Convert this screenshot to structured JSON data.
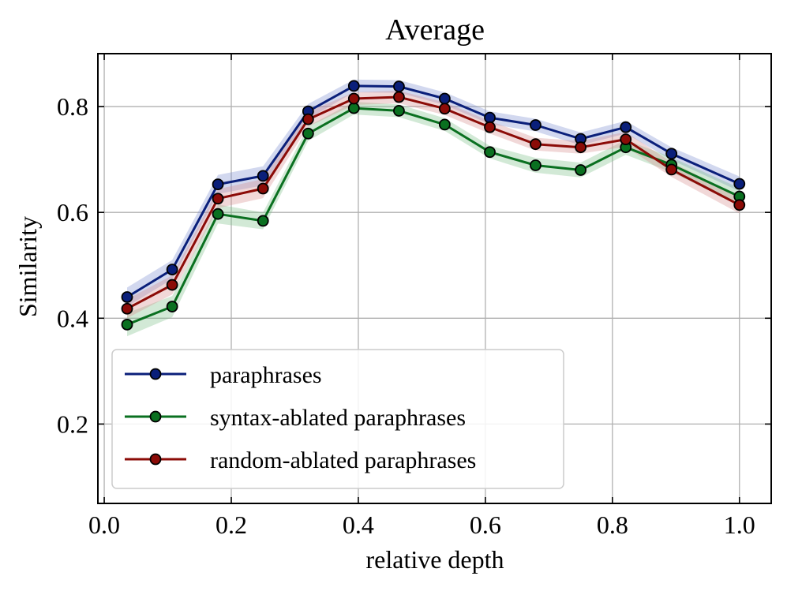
{
  "chart_data": {
    "type": "line",
    "title": "Average",
    "xlabel": "relative depth",
    "ylabel": "Similarity",
    "xlim": [
      -0.01,
      1.05
    ],
    "ylim": [
      0.05,
      0.9
    ],
    "xticks": [
      0.0,
      0.2,
      0.4,
      0.6,
      0.8,
      1.0
    ],
    "xtick_labels": [
      "0.0",
      "0.2",
      "0.4",
      "0.6",
      "0.8",
      "1.0"
    ],
    "yticks": [
      0.2,
      0.4,
      0.6,
      0.8
    ],
    "ytick_labels": [
      "0.2",
      "0.4",
      "0.6",
      "0.8"
    ],
    "grid": true,
    "legend_position": "lower-left",
    "x": [
      0.036,
      0.107,
      0.179,
      0.25,
      0.321,
      0.393,
      0.464,
      0.536,
      0.607,
      0.679,
      0.75,
      0.821,
      0.893,
      1.0
    ],
    "series": [
      {
        "name": "paraphrases",
        "color": "#0a1f7a",
        "band_color": "#7f8fd0",
        "values": [
          0.44,
          0.492,
          0.653,
          0.669,
          0.791,
          0.839,
          0.838,
          0.815,
          0.779,
          0.765,
          0.739,
          0.761,
          0.711,
          0.654
        ],
        "band": [
          0.018,
          0.018,
          0.018,
          0.018,
          0.014,
          0.012,
          0.012,
          0.012,
          0.012,
          0.012,
          0.012,
          0.012,
          0.012,
          0.014
        ]
      },
      {
        "name": "syntax-ablated paraphrases",
        "color": "#0a7020",
        "band_color": "#7fc08a",
        "values": [
          0.388,
          0.422,
          0.597,
          0.584,
          0.749,
          0.797,
          0.792,
          0.766,
          0.714,
          0.689,
          0.68,
          0.723,
          0.69,
          0.63
        ],
        "band": [
          0.022,
          0.02,
          0.018,
          0.016,
          0.014,
          0.012,
          0.012,
          0.012,
          0.012,
          0.014,
          0.014,
          0.014,
          0.014,
          0.016
        ]
      },
      {
        "name": "random-ablated paraphrases",
        "color": "#8b0b07",
        "band_color": "#d89090",
        "values": [
          0.418,
          0.463,
          0.626,
          0.645,
          0.776,
          0.815,
          0.818,
          0.796,
          0.761,
          0.729,
          0.723,
          0.738,
          0.681,
          0.614
        ],
        "band": [
          0.018,
          0.018,
          0.018,
          0.018,
          0.014,
          0.012,
          0.012,
          0.012,
          0.012,
          0.012,
          0.012,
          0.014,
          0.014,
          0.016
        ]
      }
    ]
  }
}
